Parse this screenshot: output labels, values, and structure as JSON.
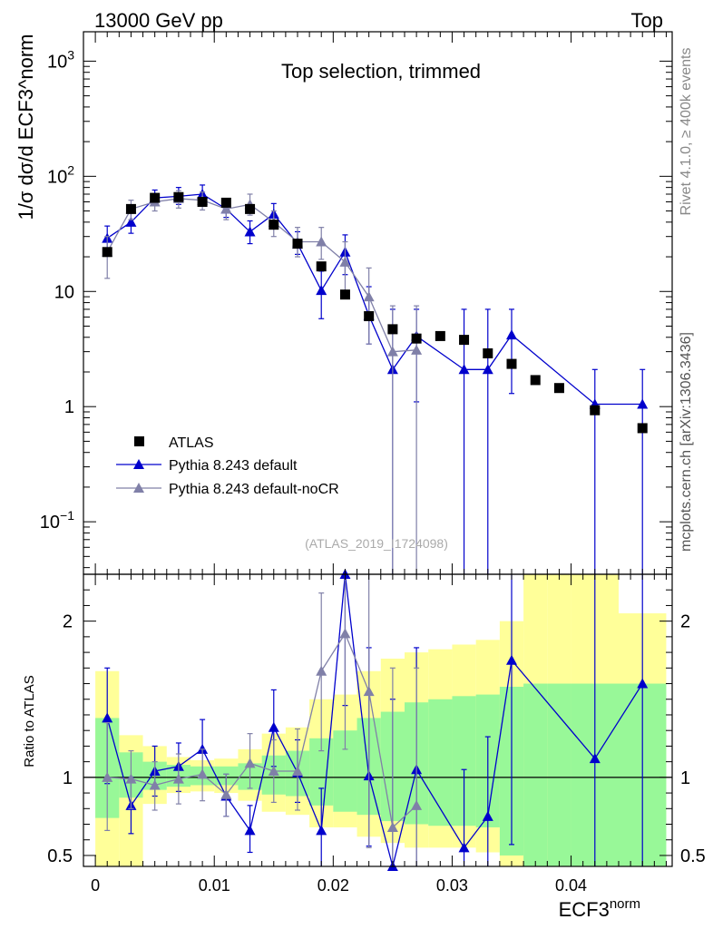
{
  "header": {
    "left": "13000 GeV pp",
    "right": "Top"
  },
  "side_text": {
    "rivet": "Rivet 4.1.0, ≥ 400k events",
    "mcplots": "mcplots.cern.ch [arXiv:1306.3436]"
  },
  "chart_data": {
    "type": "scatter",
    "title": "Top selection, trimmed",
    "analysis_id": "(ATLAS_2019_I1724098)",
    "xlabel": {
      "base": "ECF3",
      "sup": "norm"
    },
    "ylabel_main": "1/σ dσ/d ECF3^norm",
    "ylabel_ratio": "Ratio to ATLAS",
    "xlim": [
      -0.001,
      0.0485
    ],
    "ylim_main": [
      0.035,
      1800
    ],
    "ylim_ratio": [
      0.43,
      2.3
    ],
    "main_yscale": "log",
    "x_ticks": [
      "0",
      "0.01",
      "0.02",
      "0.03",
      "0.04"
    ],
    "main_y_ticks": [
      {
        "value": 0.1,
        "label": "10",
        "sup": "−1"
      },
      {
        "value": 1,
        "label": "1",
        "sup": ""
      },
      {
        "value": 10,
        "label": "10",
        "sup": ""
      },
      {
        "value": 100,
        "label": "10",
        "sup": "2"
      },
      {
        "value": 1000,
        "label": "10",
        "sup": "3"
      }
    ],
    "ratio_y_ticks": [
      {
        "value": 0.5,
        "label": "0.5"
      },
      {
        "value": 1,
        "label": "1"
      },
      {
        "value": 2,
        "label": "2"
      }
    ],
    "legend": [
      {
        "name": "ATLAS",
        "style": "data"
      },
      {
        "name": "Pythia 8.243 default",
        "style": "blue"
      },
      {
        "name": "Pythia 8.243 default-noCR",
        "style": "gray"
      }
    ],
    "band_edges": [
      0,
      0.002,
      0.004,
      0.006,
      0.008,
      0.01,
      0.012,
      0.014,
      0.016,
      0.018,
      0.02,
      0.022,
      0.024,
      0.026,
      0.028,
      0.03,
      0.032,
      0.034,
      0.036,
      0.038,
      0.04,
      0.044,
      0.048
    ],
    "band_inner": [
      [
        0.74,
        1.38
      ],
      [
        0.87,
        1.16
      ],
      [
        0.92,
        1.1
      ],
      [
        0.94,
        1.08
      ],
      [
        0.95,
        1.07
      ],
      [
        0.95,
        1.07
      ],
      [
        0.92,
        1.09
      ],
      [
        0.89,
        1.14
      ],
      [
        0.88,
        1.17
      ],
      [
        0.82,
        1.25
      ],
      [
        0.78,
        1.3
      ],
      [
        0.76,
        1.38
      ],
      [
        0.72,
        1.42
      ],
      [
        0.7,
        1.48
      ],
      [
        0.69,
        1.5
      ],
      [
        0.69,
        1.52
      ],
      [
        0.68,
        1.53
      ],
      [
        0.5,
        1.58
      ],
      [
        0.4,
        1.6
      ],
      [
        0.4,
        1.6
      ],
      [
        0.4,
        1.6
      ],
      [
        0.4,
        1.6
      ]
    ],
    "band_outer": [
      [
        0.4,
        1.68
      ],
      [
        0.4,
        1.27
      ],
      [
        0.83,
        1.2
      ],
      [
        0.9,
        1.13
      ],
      [
        0.91,
        1.11
      ],
      [
        0.9,
        1.12
      ],
      [
        0.85,
        1.18
      ],
      [
        0.78,
        1.28
      ],
      [
        0.76,
        1.32
      ],
      [
        0.68,
        1.5
      ],
      [
        0.68,
        1.53
      ],
      [
        0.62,
        1.68
      ],
      [
        0.58,
        1.76
      ],
      [
        0.55,
        1.8
      ],
      [
        0.55,
        1.82
      ],
      [
        0.55,
        1.85
      ],
      [
        0.52,
        1.88
      ],
      [
        0.4,
        2.0
      ],
      [
        0.4,
        2.3
      ],
      [
        0.4,
        2.3
      ],
      [
        0.4,
        2.3
      ],
      [
        0.4,
        2.05
      ]
    ],
    "atlas": {
      "x": [
        0.001,
        0.003,
        0.005,
        0.007,
        0.009,
        0.011,
        0.013,
        0.015,
        0.017,
        0.019,
        0.021,
        0.023,
        0.025,
        0.027,
        0.029,
        0.031,
        0.033,
        0.035,
        0.037,
        0.039,
        0.042,
        0.046
      ],
      "y": [
        22,
        52,
        65,
        66,
        60,
        59,
        52,
        38,
        26,
        16.5,
        9.4,
        6.1,
        4.7,
        3.9,
        4.1,
        3.8,
        2.9,
        2.35,
        1.7,
        1.45,
        0.93,
        0.65
      ]
    },
    "series": [
      {
        "name": "Pythia 8.243 default",
        "x": [
          0.001,
          0.003,
          0.005,
          0.007,
          0.009,
          0.011,
          0.013,
          0.015,
          0.017,
          0.019,
          0.021,
          0.023,
          0.025,
          0.027,
          0.031,
          0.033,
          0.035,
          0.042,
          0.046
        ],
        "y": [
          29,
          40,
          65,
          67,
          70,
          52,
          33,
          47,
          26,
          10.2,
          22,
          6.2,
          2.1,
          4.1,
          2.1,
          2.1,
          4.2,
          1.05,
          1.05
        ],
        "err_lo": [
          21,
          32,
          56,
          57,
          59,
          44,
          26,
          37,
          21,
          5.8,
          14,
          3.5,
          0.01,
          1.1,
          0.01,
          0.01,
          1.3,
          0.01,
          0.01
        ],
        "err_hi": [
          37,
          50,
          76,
          80,
          84,
          61,
          41,
          58,
          33,
          15,
          31,
          11,
          7,
          7,
          7,
          7,
          7,
          2.1,
          2.1
        ],
        "ratio": [
          1.38,
          0.82,
          1.04,
          1.07,
          1.18,
          0.88,
          0.66,
          1.32,
          1.03,
          0.66,
          2.31,
          1.01,
          0.42,
          1.05,
          0.55,
          0.75,
          1.75,
          1.12,
          1.6
        ],
        "ratio_lo": [
          0.96,
          0.64,
          0.88,
          0.91,
          1.0,
          0.75,
          0.52,
          1.07,
          0.84,
          0.36,
          1.46,
          0.56,
          0.0,
          0.3,
          0.0,
          0.0,
          0.57,
          0.0,
          0.0
        ],
        "ratio_hi": [
          1.7,
          1.0,
          1.2,
          1.22,
          1.37,
          1.02,
          0.82,
          1.56,
          1.24,
          0.93,
          3.2,
          1.83,
          1.5,
          1.83,
          1.05,
          1.26,
          3.0,
          2.3,
          2.3
        ]
      },
      {
        "name": "Pythia 8.243 default-noCR",
        "x": [
          0.001,
          0.003,
          0.005,
          0.007,
          0.009,
          0.011,
          0.013,
          0.015,
          0.017,
          0.019,
          0.021,
          0.023,
          0.025,
          0.027
        ],
        "y": [
          22,
          52,
          60,
          64,
          62,
          52,
          57,
          40,
          27,
          27,
          18,
          9.0,
          3.0,
          3.1
        ],
        "err_lo": [
          13,
          42,
          50,
          53,
          51,
          42,
          46,
          30,
          20,
          19,
          10,
          3.5,
          0.01,
          0.01
        ],
        "err_hi": [
          30,
          62,
          70,
          75,
          73,
          62,
          70,
          50,
          36,
          36,
          27,
          16,
          7.5,
          7.5
        ],
        "ratio": [
          1.0,
          0.99,
          0.95,
          0.99,
          1.02,
          0.89,
          1.09,
          1.04,
          1.04,
          1.68,
          1.92,
          1.55,
          0.68,
          0.82
        ],
        "ratio_lo": [
          0.66,
          0.8,
          0.79,
          0.83,
          0.85,
          0.75,
          0.93,
          0.84,
          0.79,
          1.17,
          1.18,
          0.55,
          0.0,
          0.0
        ],
        "ratio_hi": [
          1.35,
          1.17,
          1.1,
          1.15,
          1.18,
          1.02,
          1.28,
          1.24,
          1.31,
          2.18,
          2.6,
          2.45,
          1.7,
          1.7
        ]
      }
    ]
  }
}
